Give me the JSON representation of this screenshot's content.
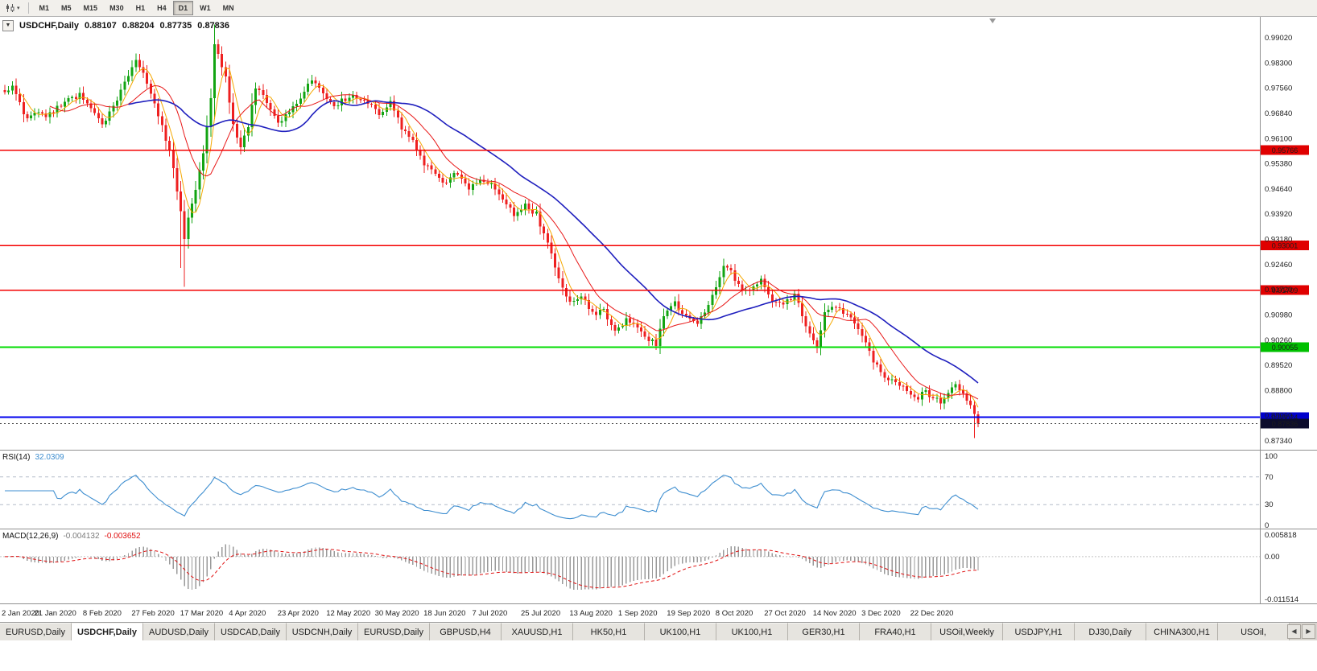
{
  "colors": {
    "bull": "#12a412",
    "bear": "#ee2020",
    "axis_text": "#1c1c1c",
    "separator": "#909090",
    "rsi_line": "#3e8ed0",
    "rsi_level": "#b4bcc9",
    "macd_hist": "#9a9a9a",
    "macd_signal": "#e01010"
  },
  "toolbar": {
    "chart_type_tooltip": "Chart type",
    "timeframes": [
      "M1",
      "M5",
      "M15",
      "M30",
      "H1",
      "H4",
      "D1",
      "W1",
      "MN"
    ],
    "active_timeframe": "D1"
  },
  "chart": {
    "collapse_icon": "▼",
    "title_symbol": "USDCHF,Daily",
    "ohlc": {
      "open": "0.88107",
      "high": "0.88204",
      "low": "0.87735",
      "close": "0.87836"
    },
    "price_axis_labels": [
      "0.99020",
      "0.98300",
      "0.97560",
      "0.96840",
      "0.96100",
      "0.95380",
      "0.94640",
      "0.93920",
      "0.93180",
      "0.92460",
      "0.91720",
      "0.90980",
      "0.90260",
      "0.89520",
      "0.88800",
      "0.88060",
      "0.87340"
    ],
    "date_axis_labels": [
      {
        "label": "2 Jan 2020",
        "day": 0
      },
      {
        "label": "21 Jan 2020",
        "day": 13
      },
      {
        "label": "8 Feb 2020",
        "day": 26
      },
      {
        "label": "27 Feb 2020",
        "day": 39
      },
      {
        "label": "17 Mar 2020",
        "day": 52
      },
      {
        "label": "4 Apr 2020",
        "day": 65
      },
      {
        "label": "23 Apr 2020",
        "day": 78
      },
      {
        "label": "12 May 2020",
        "day": 91
      },
      {
        "label": "30 May 2020",
        "day": 104
      },
      {
        "label": "18 Jun 2020",
        "day": 117
      },
      {
        "label": "7 Jul 2020",
        "day": 130
      },
      {
        "label": "25 Jul 2020",
        "day": 143
      },
      {
        "label": "13 Aug 2020",
        "day": 156
      },
      {
        "label": "1 Sep 2020",
        "day": 169
      },
      {
        "label": "19 Sep 2020",
        "day": 182
      },
      {
        "label": "8 Oct 2020",
        "day": 195
      },
      {
        "label": "27 Oct 2020",
        "day": 208
      },
      {
        "label": "14 Nov 2020",
        "day": 221
      },
      {
        "label": "3 Dec 2020",
        "day": 234
      },
      {
        "label": "22 Dec 2020",
        "day": 247
      }
    ]
  },
  "rsi": {
    "name": "RSI(14)",
    "value": "32.0309",
    "axis_labels": [
      "100",
      "70",
      "30",
      "0"
    ],
    "levels": [
      70,
      30
    ]
  },
  "macd": {
    "name": "MACD(12,26,9)",
    "value_macd": "-0.004132",
    "value_signal": "-0.003652",
    "axis_top": "0.005818",
    "axis_zero": "0.00",
    "axis_bottom": "-0.011514"
  },
  "tabs": {
    "items": [
      "EURUSD,Daily",
      "USDCHF,Daily",
      "AUDUSD,Daily",
      "USDCAD,Daily",
      "USDCNH,Daily",
      "EURUSD,Daily",
      "GBPUSD,H4",
      "XAUUSD,H1",
      "HK50,H1",
      "UK100,H1",
      "UK100,H1",
      "GER30,H1",
      "FRA40,H1",
      "USOil,Weekly",
      "USDJPY,H1",
      "DJ30,Daily",
      "CHINA300,H1",
      "USOil,"
    ],
    "active_index": 1,
    "scroll_left": "◀",
    "scroll_right": "▶"
  },
  "chart_data": {
    "type": "candlestick",
    "symbol": "USDCHF",
    "timeframe": "Daily",
    "num_candles": 261,
    "x_axis": "trading days 2 Jan 2020 - 31 Dec 2020",
    "y_range": [
      0.8734,
      0.9902
    ],
    "close_anchors": [
      [
        0,
        0.9745
      ],
      [
        2,
        0.9762
      ],
      [
        4,
        0.9708
      ],
      [
        6,
        0.9666
      ],
      [
        8,
        0.9688
      ],
      [
        11,
        0.9672
      ],
      [
        14,
        0.9702
      ],
      [
        17,
        0.9722
      ],
      [
        20,
        0.9734
      ],
      [
        23,
        0.9695
      ],
      [
        26,
        0.9648
      ],
      [
        29,
        0.9702
      ],
      [
        32,
        0.978
      ],
      [
        35,
        0.9838
      ],
      [
        37,
        0.9802
      ],
      [
        39,
        0.9745
      ],
      [
        41,
        0.9675
      ],
      [
        43,
        0.9612
      ],
      [
        45,
        0.953
      ],
      [
        47,
        0.94
      ],
      [
        48,
        0.9315
      ],
      [
        49,
        0.9385
      ],
      [
        51,
        0.946
      ],
      [
        53,
        0.956
      ],
      [
        55,
        0.9735
      ],
      [
        56,
        0.9878
      ],
      [
        57,
        0.9848
      ],
      [
        59,
        0.9782
      ],
      [
        61,
        0.9655
      ],
      [
        63,
        0.958
      ],
      [
        65,
        0.9648
      ],
      [
        67,
        0.9762
      ],
      [
        70,
        0.9715
      ],
      [
        73,
        0.966
      ],
      [
        76,
        0.9685
      ],
      [
        79,
        0.9728
      ],
      [
        82,
        0.978
      ],
      [
        85,
        0.9745
      ],
      [
        88,
        0.9708
      ],
      [
        91,
        0.9724
      ],
      [
        94,
        0.9732
      ],
      [
        97,
        0.971
      ],
      [
        100,
        0.9685
      ],
      [
        103,
        0.9714
      ],
      [
        106,
        0.964
      ],
      [
        109,
        0.9604
      ],
      [
        112,
        0.954
      ],
      [
        115,
        0.9508
      ],
      [
        118,
        0.948
      ],
      [
        121,
        0.9514
      ],
      [
        124,
        0.9465
      ],
      [
        127,
        0.9486
      ],
      [
        130,
        0.9474
      ],
      [
        133,
        0.9434
      ],
      [
        136,
        0.9394
      ],
      [
        139,
        0.9414
      ],
      [
        142,
        0.939
      ],
      [
        145,
        0.9305
      ],
      [
        148,
        0.92
      ],
      [
        151,
        0.9134
      ],
      [
        154,
        0.9154
      ],
      [
        157,
        0.9104
      ],
      [
        160,
        0.9114
      ],
      [
        163,
        0.9054
      ],
      [
        166,
        0.9084
      ],
      [
        169,
        0.9064
      ],
      [
        172,
        0.903
      ],
      [
        174,
        0.901
      ],
      [
        176,
        0.9094
      ],
      [
        179,
        0.9134
      ],
      [
        182,
        0.909
      ],
      [
        185,
        0.908
      ],
      [
        188,
        0.912
      ],
      [
        190,
        0.918
      ],
      [
        192,
        0.9244
      ],
      [
        194,
        0.9224
      ],
      [
        196,
        0.9184
      ],
      [
        199,
        0.916
      ],
      [
        202,
        0.9204
      ],
      [
        205,
        0.9144
      ],
      [
        208,
        0.913
      ],
      [
        211,
        0.9154
      ],
      [
        213,
        0.91
      ],
      [
        215,
        0.904
      ],
      [
        217,
        0.9
      ],
      [
        219,
        0.911
      ],
      [
        221,
        0.9124
      ],
      [
        224,
        0.9104
      ],
      [
        226,
        0.9088
      ],
      [
        228,
        0.9058
      ],
      [
        230,
        0.9012
      ],
      [
        232,
        0.8968
      ],
      [
        234,
        0.893
      ],
      [
        236,
        0.8912
      ],
      [
        238,
        0.8896
      ],
      [
        240,
        0.8888
      ],
      [
        242,
        0.8872
      ],
      [
        244,
        0.8862
      ],
      [
        246,
        0.8876
      ],
      [
        248,
        0.8856
      ],
      [
        250,
        0.8848
      ],
      [
        252,
        0.8874
      ],
      [
        254,
        0.8902
      ],
      [
        255,
        0.8888
      ],
      [
        256,
        0.8868
      ],
      [
        257,
        0.885
      ],
      [
        258,
        0.8832
      ],
      [
        259,
        0.8812
      ],
      [
        260,
        0.87836
      ]
    ],
    "wick_events": [
      {
        "day": 47,
        "low": 0.9235
      },
      {
        "day": 48,
        "low": 0.918
      },
      {
        "day": 56,
        "high": 0.9901
      },
      {
        "day": 174,
        "low": 0.8998
      },
      {
        "day": 192,
        "high": 0.9262
      },
      {
        "day": 217,
        "low": 0.8988
      },
      {
        "day": 259,
        "low": 0.8742
      }
    ],
    "last_candle": {
      "open": 0.88107,
      "high": 0.88204,
      "low": 0.87735,
      "close": 0.87836
    },
    "moving_averages": [
      {
        "period": 5,
        "color": "#f5a800",
        "width": 1
      },
      {
        "period": 13,
        "color": "#e81717",
        "width": 1
      },
      {
        "period": 34,
        "color": "#1f1fbe",
        "width": 1.6
      }
    ],
    "hlines": [
      {
        "price": 0.95766,
        "label": "0.95766",
        "color": "#f40000",
        "width": 1.4,
        "label_bg": "#e00000"
      },
      {
        "price": 0.93001,
        "label": "0.93001",
        "color": "#f40000",
        "width": 1.4,
        "label_bg": "#e00000"
      },
      {
        "price": 0.91709,
        "label": "0.91709",
        "color": "#f40000",
        "width": 1.4,
        "label_bg": "#e00000"
      },
      {
        "price": 0.90055,
        "label": "0.90055",
        "color": "#00dc00",
        "width": 2,
        "label_bg": "#00c000"
      },
      {
        "price": 0.88024,
        "label": "0.88024",
        "color": "#0000ee",
        "width": 2,
        "label_bg": "#0000cc"
      }
    ],
    "current_price": {
      "value": 0.87836,
      "label": "0.87836",
      "label_bg": "#0c0c2c"
    },
    "indicators": [
      {
        "name": "RSI",
        "period": 14,
        "display_value": 32.0309,
        "levels": [
          70,
          30
        ],
        "range": [
          0,
          100
        ]
      },
      {
        "name": "MACD",
        "fast": 12,
        "slow": 26,
        "signal": 9,
        "display_values": [
          -0.004132,
          -0.003652
        ],
        "range": [
          -0.011514,
          0.005818
        ]
      }
    ]
  }
}
